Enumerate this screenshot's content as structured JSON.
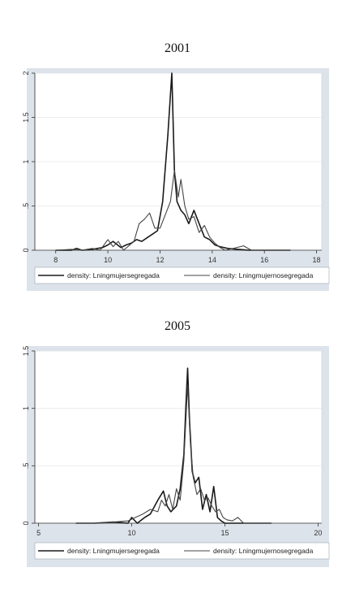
{
  "chart_data": [
    {
      "type": "line",
      "title": "2001",
      "xlim": [
        7.2,
        18.2
      ],
      "ylim": [
        0,
        2
      ],
      "xticks": [
        "8",
        "10",
        "12",
        "14",
        "16",
        "18"
      ],
      "yticks": [
        "0",
        ".5",
        "1",
        "1.5",
        "2"
      ],
      "grid": true,
      "legend_position": "bottom",
      "series": [
        {
          "name": "density: Lningmujersegregada",
          "x": [
            8,
            8.6,
            8.8,
            9.0,
            9.4,
            9.8,
            10.0,
            10.2,
            10.5,
            10.7,
            10.9,
            11.1,
            11.3,
            11.5,
            11.7,
            11.9,
            12.1,
            12.3,
            12.45,
            12.55,
            12.65,
            12.8,
            12.95,
            13.1,
            13.3,
            13.5,
            13.7,
            13.9,
            14.1,
            14.3,
            14.6,
            15.0,
            15.4,
            16,
            17
          ],
          "y": [
            0.0,
            0.0,
            0.02,
            0.0,
            0.01,
            0.03,
            0.06,
            0.1,
            0.03,
            0.06,
            0.08,
            0.12,
            0.1,
            0.14,
            0.18,
            0.22,
            0.55,
            1.3,
            2.0,
            0.9,
            0.55,
            0.45,
            0.4,
            0.3,
            0.45,
            0.3,
            0.15,
            0.12,
            0.06,
            0.04,
            0.02,
            0.01,
            0.0,
            0.0,
            0.0
          ]
        },
        {
          "name": "density: Lningmujernosegregada",
          "x": [
            8,
            8.6,
            9.0,
            9.4,
            9.7,
            10.0,
            10.2,
            10.4,
            10.6,
            10.8,
            11.0,
            11.2,
            11.4,
            11.6,
            11.8,
            12.0,
            12.2,
            12.4,
            12.55,
            12.7,
            12.8,
            12.95,
            13.1,
            13.3,
            13.5,
            13.7,
            13.9,
            14.1,
            14.3,
            14.5,
            14.8,
            15.2,
            15.5,
            15.8,
            16.5,
            17.0
          ],
          "y": [
            0.0,
            0.01,
            0.0,
            0.02,
            0.0,
            0.12,
            0.04,
            0.1,
            0.0,
            0.05,
            0.1,
            0.3,
            0.35,
            0.42,
            0.25,
            0.25,
            0.4,
            0.55,
            0.9,
            0.6,
            0.8,
            0.5,
            0.35,
            0.38,
            0.2,
            0.28,
            0.15,
            0.08,
            0.03,
            0.0,
            0.02,
            0.05,
            0.0,
            0.0,
            0.0,
            0.0
          ]
        }
      ]
    },
    {
      "type": "line",
      "title": "2005",
      "xlim": [
        4.8,
        20.2
      ],
      "ylim": [
        0,
        1.5
      ],
      "xticks": [
        "5",
        "10",
        "15",
        "20"
      ],
      "yticks": [
        "0",
        ".5",
        "1",
        "1.5"
      ],
      "grid": true,
      "legend_position": "bottom",
      "series": [
        {
          "name": "density: Lningmujersegregada",
          "x": [
            7,
            8,
            9,
            9.8,
            10.0,
            10.3,
            10.7,
            11.0,
            11.4,
            11.7,
            11.9,
            12.1,
            12.4,
            12.6,
            12.8,
            12.9,
            13.0,
            13.1,
            13.25,
            13.4,
            13.6,
            13.8,
            14.0,
            14.2,
            14.4,
            14.6,
            14.8,
            15.0,
            15.3,
            15.6,
            16.0,
            17.5
          ],
          "y": [
            0.0,
            0.0,
            0.01,
            0.0,
            0.05,
            0.0,
            0.05,
            0.08,
            0.2,
            0.28,
            0.15,
            0.1,
            0.15,
            0.3,
            0.6,
            1.0,
            1.35,
            0.9,
            0.45,
            0.35,
            0.4,
            0.12,
            0.25,
            0.1,
            0.32,
            0.05,
            0.02,
            0.0,
            0.0,
            0.0,
            0.0,
            0.0
          ]
        },
        {
          "name": "density: Lningmujernosegregada",
          "x": [
            7,
            8,
            9,
            9.8,
            10.2,
            10.6,
            11.0,
            11.4,
            11.6,
            11.8,
            12.0,
            12.2,
            12.4,
            12.6,
            12.8,
            13.0,
            13.15,
            13.3,
            13.5,
            13.7,
            13.9,
            14.1,
            14.3,
            14.5,
            14.7,
            14.9,
            15.1,
            15.4,
            15.7,
            16.0,
            17.5
          ],
          "y": [
            0.0,
            0.0,
            0.01,
            0.02,
            0.05,
            0.08,
            0.12,
            0.1,
            0.2,
            0.15,
            0.25,
            0.12,
            0.3,
            0.2,
            0.55,
            1.2,
            0.7,
            0.4,
            0.25,
            0.3,
            0.2,
            0.22,
            0.15,
            0.1,
            0.12,
            0.05,
            0.03,
            0.02,
            0.05,
            0.0,
            0.0
          ]
        }
      ]
    }
  ]
}
